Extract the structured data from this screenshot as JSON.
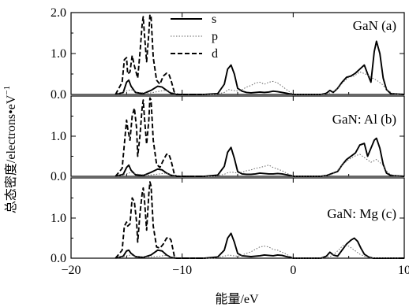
{
  "chart_data": {
    "type": "line",
    "xlabel": "能量/eV",
    "ylabel": "总态密度/electrons•eV",
    "ylabel_sup": "−1",
    "xlim": [
      -20,
      10
    ],
    "x_ticks": [
      -20,
      -10,
      0,
      10
    ],
    "x_tick_labels": [
      "−20",
      "−10",
      "0",
      "10"
    ],
    "legend": {
      "entries": [
        {
          "name": "s",
          "style": "solid"
        },
        {
          "name": "p",
          "style": "dotted"
        },
        {
          "name": "d",
          "style": "dashed"
        }
      ],
      "placement": "top-center"
    },
    "panels": [
      {
        "label": "GaN (a)",
        "ylim": [
          0,
          2.0
        ],
        "y_ticks": [
          0,
          1,
          2
        ],
        "y_tick_labels": [
          "0.0",
          "1.0",
          "2.0"
        ],
        "series": [
          {
            "name": "s",
            "x": [
              -16,
              -15.3,
              -15,
              -14.8,
              -14.6,
              -14.2,
              -13.5,
              -12.8,
              -12.2,
              -11.8,
              -11.4,
              -11.0,
              -10.5,
              -8,
              -6.8,
              -6.2,
              -5.9,
              -5.6,
              -5.3,
              -5.0,
              -4.6,
              -4.2,
              -3.8,
              -3.4,
              -3.0,
              -2.6,
              -2.2,
              -1.8,
              -1.4,
              -1.0,
              -0.6,
              -0.2,
              0,
              2.5,
              3.0,
              3.3,
              3.6,
              4.0,
              4.4,
              4.8,
              5.2,
              5.6,
              6.0,
              6.4,
              6.7,
              7.0,
              7.3,
              7.5,
              7.8,
              8.1,
              8.4,
              8.8,
              10
            ],
            "values": [
              0,
              0.05,
              0.3,
              0.35,
              0.2,
              0.05,
              0.02,
              0.1,
              0.2,
              0.18,
              0.1,
              0.03,
              0,
              0,
              0.02,
              0.25,
              0.62,
              0.72,
              0.5,
              0.15,
              0.08,
              0.05,
              0.04,
              0.05,
              0.06,
              0.05,
              0.06,
              0.08,
              0.07,
              0.05,
              0.03,
              0.01,
              0,
              0,
              0.03,
              0.1,
              0.05,
              0.15,
              0.3,
              0.42,
              0.45,
              0.52,
              0.62,
              0.72,
              0.5,
              0.3,
              1.05,
              1.3,
              1.0,
              0.4,
              0.12,
              0.02,
              0
            ]
          },
          {
            "name": "p",
            "x": [
              -16,
              -15,
              -14.6,
              -14,
              -13,
              -12,
              -11.5,
              -11,
              -10,
              -7,
              -6.2,
              -5.8,
              -5.4,
              -5.0,
              -4.6,
              -4.2,
              -3.8,
              -3.4,
              -3.0,
              -2.6,
              -2.2,
              -1.8,
              -1.4,
              -1.0,
              -0.6,
              -0.2,
              0,
              2.5,
              3.0,
              3.5,
              4.0,
              4.5,
              5.0,
              5.5,
              6.0,
              6.5,
              7.0,
              7.5,
              8.0,
              8.5,
              9,
              10
            ],
            "values": [
              0,
              0.08,
              0.12,
              0.05,
              0.03,
              0.08,
              0.1,
              0.05,
              0,
              0,
              0.05,
              0.12,
              0.1,
              0.08,
              0.12,
              0.18,
              0.22,
              0.28,
              0.3,
              0.25,
              0.3,
              0.32,
              0.28,
              0.2,
              0.12,
              0.04,
              0,
              0,
              0.02,
              0.05,
              0.15,
              0.3,
              0.42,
              0.45,
              0.55,
              0.5,
              0.42,
              0.35,
              0.25,
              0.1,
              0.02,
              0
            ]
          },
          {
            "name": "d",
            "x": [
              -16,
              -15.4,
              -15.2,
              -15.0,
              -14.9,
              -14.7,
              -14.5,
              -14.3,
              -14.0,
              -13.8,
              -13.6,
              -13.5,
              -13.4,
              -13.2,
              -13.0,
              -12.9,
              -12.8,
              -12.6,
              -12.3,
              -12.0,
              -11.7,
              -11.4,
              -11.2,
              -11.0,
              -10.7,
              -10.5,
              -8
            ],
            "values": [
              0,
              0.3,
              0.85,
              0.9,
              0.5,
              0.55,
              0.95,
              0.7,
              0.4,
              1.0,
              1.7,
              1.9,
              1.5,
              0.8,
              1.5,
              1.95,
              1.9,
              0.9,
              0.35,
              0.25,
              0.45,
              0.52,
              0.5,
              0.35,
              0.05,
              0,
              0
            ]
          }
        ]
      },
      {
        "label": "GaN: Al (b)",
        "ylim": [
          0,
          2.0
        ],
        "y_ticks": [
          0,
          1
        ],
        "y_tick_labels": [
          "0.0",
          "1.0"
        ],
        "series": [
          {
            "name": "s",
            "x": [
              -16,
              -15.3,
              -15,
              -14.8,
              -14.6,
              -14.2,
              -13.5,
              -12.8,
              -12.2,
              -11.8,
              -11.4,
              -11.0,
              -10.5,
              -8,
              -6.8,
              -6.2,
              -5.9,
              -5.6,
              -5.3,
              -5.0,
              -4.6,
              -4.2,
              -3.8,
              -3.4,
              -3.0,
              -2.6,
              -2.2,
              -1.8,
              -1.4,
              -1.0,
              -0.6,
              -0.2,
              0,
              2.5,
              3.0,
              3.4,
              4.0,
              4.4,
              4.8,
              5.2,
              5.6,
              6.0,
              6.4,
              6.7,
              7.0,
              7.3,
              7.5,
              7.8,
              8.1,
              8.4,
              8.8,
              10
            ],
            "values": [
              0,
              0.05,
              0.22,
              0.28,
              0.15,
              0.04,
              0.02,
              0.1,
              0.18,
              0.16,
              0.08,
              0.03,
              0,
              0,
              0.03,
              0.25,
              0.6,
              0.72,
              0.45,
              0.12,
              0.06,
              0.05,
              0.05,
              0.06,
              0.08,
              0.07,
              0.06,
              0.06,
              0.07,
              0.06,
              0.04,
              0.02,
              0,
              0,
              0.02,
              0.06,
              0.12,
              0.28,
              0.42,
              0.5,
              0.58,
              0.78,
              0.82,
              0.5,
              0.7,
              0.9,
              0.95,
              0.7,
              0.3,
              0.08,
              0.02,
              0
            ]
          },
          {
            "name": "p",
            "x": [
              -16,
              -15,
              -14.6,
              -14,
              -13,
              -12,
              -11.5,
              -11,
              -10,
              -7,
              -6.2,
              -5.8,
              -5.4,
              -5.0,
              -4.6,
              -4.2,
              -3.8,
              -3.4,
              -3.0,
              -2.6,
              -2.2,
              -1.8,
              -1.4,
              -1.0,
              -0.6,
              -0.2,
              0,
              2.5,
              3.0,
              3.5,
              4.0,
              4.5,
              5.0,
              5.5,
              6.0,
              6.5,
              7.0,
              7.5,
              8.0,
              8.5,
              9,
              10
            ],
            "values": [
              0,
              0.06,
              0.1,
              0.05,
              0.03,
              0.06,
              0.08,
              0.04,
              0,
              0,
              0.05,
              0.1,
              0.1,
              0.08,
              0.1,
              0.14,
              0.16,
              0.2,
              0.22,
              0.25,
              0.28,
              0.22,
              0.18,
              0.14,
              0.08,
              0.03,
              0,
              0,
              0.02,
              0.05,
              0.15,
              0.3,
              0.42,
              0.5,
              0.55,
              0.45,
              0.35,
              0.42,
              0.3,
              0.1,
              0.02,
              0
            ]
          },
          {
            "name": "d",
            "x": [
              -16,
              -15.4,
              -15.2,
              -15.0,
              -14.9,
              -14.7,
              -14.5,
              -14.3,
              -14.1,
              -14.0,
              -13.8,
              -13.6,
              -13.5,
              -13.4,
              -13.2,
              -13.0,
              -12.9,
              -12.8,
              -12.6,
              -12.3,
              -12.0,
              -11.7,
              -11.4,
              -11.2,
              -11.0,
              -10.7,
              -10.5,
              -8
            ],
            "values": [
              0,
              0.2,
              0.8,
              1.4,
              1.2,
              0.9,
              1.5,
              1.7,
              1.2,
              0.5,
              1.0,
              1.7,
              1.9,
              1.5,
              0.8,
              1.4,
              1.95,
              1.9,
              0.9,
              0.3,
              0.22,
              0.4,
              0.55,
              0.55,
              0.4,
              0.05,
              0,
              0
            ]
          }
        ]
      },
      {
        "label": "GaN: Mg (c)",
        "ylim": [
          0,
          2.0
        ],
        "y_ticks": [
          0,
          1
        ],
        "y_tick_labels": [
          "0.0",
          "1.0"
        ],
        "series": [
          {
            "name": "s",
            "x": [
              -16,
              -15.3,
              -15,
              -14.8,
              -14.6,
              -14.2,
              -13.5,
              -12.8,
              -12.2,
              -11.8,
              -11.4,
              -11.0,
              -10.5,
              -8,
              -6.8,
              -6.2,
              -5.9,
              -5.6,
              -5.3,
              -5.0,
              -4.6,
              -4.2,
              -3.8,
              -3.4,
              -3.0,
              -2.6,
              -2.2,
              -1.8,
              -1.4,
              -1.0,
              -0.6,
              -0.2,
              0,
              2.5,
              3.0,
              3.3,
              3.6,
              4.0,
              4.4,
              4.8,
              5.2,
              5.5,
              5.8,
              6.1,
              6.4,
              6.8,
              7.2,
              10
            ],
            "values": [
              0,
              0.05,
              0.18,
              0.2,
              0.12,
              0.04,
              0.02,
              0.08,
              0.2,
              0.18,
              0.08,
              0.02,
              0,
              0,
              0.03,
              0.2,
              0.5,
              0.62,
              0.4,
              0.12,
              0.06,
              0.05,
              0.04,
              0.05,
              0.06,
              0.08,
              0.07,
              0.06,
              0.08,
              0.07,
              0.04,
              0.02,
              0,
              0,
              0.05,
              0.15,
              0.08,
              0.05,
              0.2,
              0.35,
              0.45,
              0.5,
              0.42,
              0.25,
              0.1,
              0.03,
              0,
              0
            ]
          },
          {
            "name": "p",
            "x": [
              -16,
              -15,
              -14.6,
              -14,
              -13,
              -12,
              -11.5,
              -11,
              -10,
              -7,
              -6.2,
              -5.8,
              -5.4,
              -5.0,
              -4.6,
              -4.2,
              -3.8,
              -3.4,
              -3.0,
              -2.6,
              -2.2,
              -1.8,
              -1.4,
              -1.0,
              -0.6,
              -0.2,
              0,
              2.5,
              3.0,
              3.5,
              4.0,
              4.5,
              5.0,
              5.5,
              6.0,
              6.5,
              7.0,
              10
            ],
            "values": [
              0,
              0.06,
              0.08,
              0.04,
              0.03,
              0.05,
              0.07,
              0.03,
              0,
              0,
              0.05,
              0.08,
              0.06,
              0.05,
              0.08,
              0.12,
              0.16,
              0.22,
              0.28,
              0.3,
              0.28,
              0.22,
              0.2,
              0.15,
              0.1,
              0.03,
              0,
              0,
              0.02,
              0.06,
              0.18,
              0.32,
              0.3,
              0.2,
              0.1,
              0.04,
              0.01,
              0
            ]
          },
          {
            "name": "d",
            "x": [
              -16,
              -15.4,
              -15.2,
              -15.0,
              -14.9,
              -14.7,
              -14.5,
              -14.3,
              -14.1,
              -14.0,
              -13.8,
              -13.6,
              -13.5,
              -13.4,
              -13.2,
              -13.0,
              -12.9,
              -12.8,
              -12.6,
              -12.3,
              -12.0,
              -11.7,
              -11.4,
              -11.2,
              -11.0,
              -10.7,
              -10.5,
              -8
            ],
            "values": [
              0,
              0.2,
              0.8,
              0.9,
              0.8,
              0.85,
              1.5,
              1.4,
              0.9,
              0.4,
              1.1,
              1.6,
              1.75,
              1.5,
              0.7,
              1.6,
              1.9,
              1.8,
              0.8,
              0.28,
              0.25,
              0.35,
              0.5,
              0.52,
              0.45,
              0.05,
              0,
              0
            ]
          }
        ]
      }
    ]
  }
}
